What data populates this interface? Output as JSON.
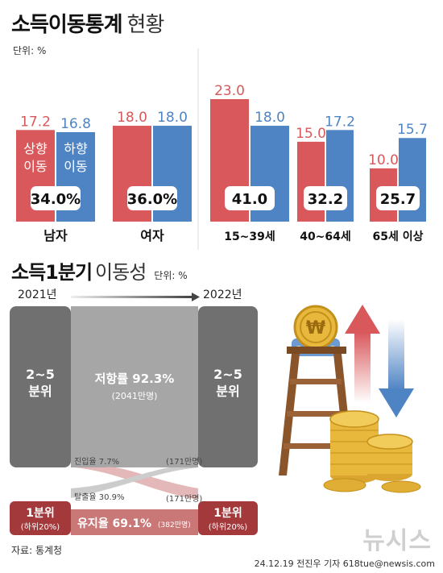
{
  "title": {
    "bold": "소득이동통계",
    "light": "현황"
  },
  "unit_label": "단위: %",
  "chart_data": {
    "type": "bar",
    "title": "소득이동통계 현황",
    "categories": [
      "남자",
      "여자",
      "15~39세",
      "40~64세",
      "65세 이상"
    ],
    "series": [
      {
        "name": "상향 이동",
        "color": "#d9585b",
        "values": [
          17.2,
          18.0,
          23.0,
          15.0,
          10.0
        ]
      },
      {
        "name": "하향 이동",
        "color": "#4f84c4",
        "values": [
          16.8,
          18.0,
          18.0,
          17.2,
          15.7
        ]
      }
    ],
    "totals": [
      "34.0%",
      "36.0%",
      "41.0",
      "32.2",
      "25.7"
    ],
    "ylim": [
      0,
      25
    ]
  },
  "legend_in_bars": {
    "up": "상향\n이동",
    "down": "하향\n이동"
  },
  "section2": {
    "bold": "소득1분기",
    "light": "이동성",
    "unit": "단위: %"
  },
  "flow": {
    "from_year": "2021년",
    "to_year": "2022년",
    "left_box": "2~5\n분위",
    "right_box": "2~5\n분위",
    "center_label": "저항률 92.3%",
    "center_sub": "(2041만명)",
    "entry_label": "진입율 7.7%",
    "entry_count": "(171만명)",
    "exit_label": "탈출율 30.9%",
    "exit_count": "(171만명)",
    "retention_label": "유지율 69.1%",
    "retention_count": "(382만명)",
    "left_bottom": "1분위",
    "left_bottom_sub": "(하위20%)",
    "right_bottom": "1분위",
    "right_bottom_sub": "(하위20%)",
    "coin_symbol": "₩"
  },
  "source": "자료: 통계청",
  "logo": "뉴시스",
  "credit": "24.12.19 전진우 기자 618tue@newsis.com"
}
